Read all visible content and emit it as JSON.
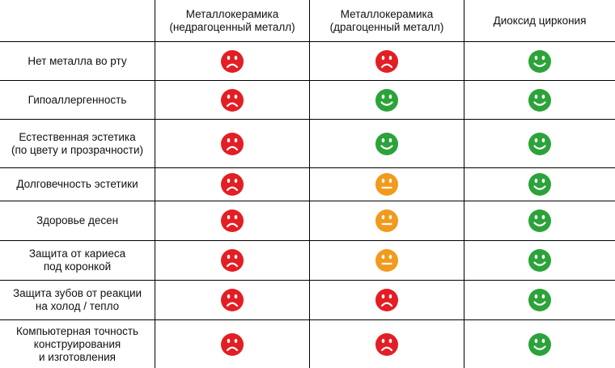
{
  "columns": [
    "",
    "Металлокерамика\n(недрагоценный металл)",
    "Металлокерамика\n(драгоценный металл)",
    "Диоксид циркония"
  ],
  "colors": {
    "bad": "#e31e24",
    "neutral": "#f29a1c",
    "good": "#2ca33a"
  },
  "rows": [
    {
      "label": "Нет металла во рту",
      "ratings": [
        "bad",
        "bad",
        "good"
      ]
    },
    {
      "label": "Гипоаллергенность",
      "ratings": [
        "bad",
        "good",
        "good"
      ]
    },
    {
      "label": "Естественная эстетика\n(по цвету и прозрачности)",
      "ratings": [
        "bad",
        "good",
        "good"
      ]
    },
    {
      "label": "Долговечность эстетики",
      "ratings": [
        "bad",
        "neutral",
        "good"
      ]
    },
    {
      "label": "Здоровье десен",
      "ratings": [
        "bad",
        "neutral",
        "good"
      ]
    },
    {
      "label": "Защита от кариеса\nпод коронкой",
      "ratings": [
        "bad",
        "neutral",
        "good"
      ]
    },
    {
      "label": "Защита зубов от реакции\nна холод / тепло",
      "ratings": [
        "bad",
        "bad",
        "good"
      ]
    },
    {
      "label": "Компьютерная точность\nконструирования\nи изготовления",
      "ratings": [
        "bad",
        "bad",
        "good"
      ]
    }
  ]
}
